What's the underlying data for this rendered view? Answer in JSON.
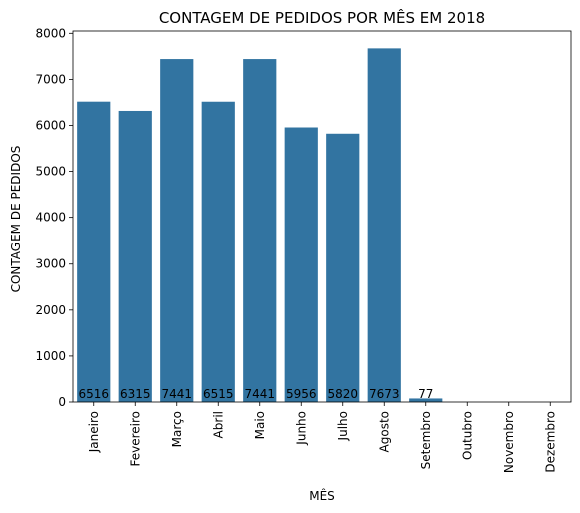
{
  "chart_data": {
    "type": "bar",
    "title": "CONTAGEM DE PEDIDOS POR MÊS EM 2018",
    "xlabel": "MÊS",
    "ylabel": "CONTAGEM DE PEDIDOS",
    "categories": [
      "Janeiro",
      "Fevereiro",
      "Março",
      "Abril",
      "Maio",
      "Junho",
      "Julho",
      "Agosto",
      "Setembro",
      "Outubro",
      "Novembro",
      "Dezembro"
    ],
    "values": [
      6516,
      6315,
      7441,
      6515,
      7441,
      5956,
      5820,
      7673,
      77,
      0,
      0,
      0
    ],
    "data_labels": [
      "6516",
      "6315",
      "7441",
      "6515",
      "7441",
      "5956",
      "5820",
      "7673",
      "77",
      "",
      "",
      ""
    ],
    "ylim": [
      0,
      8050
    ],
    "yticks": [
      0,
      1000,
      2000,
      3000,
      4000,
      5000,
      6000,
      7000,
      8000
    ],
    "bar_color": "#3274a1",
    "grid": false,
    "legend": "none"
  }
}
